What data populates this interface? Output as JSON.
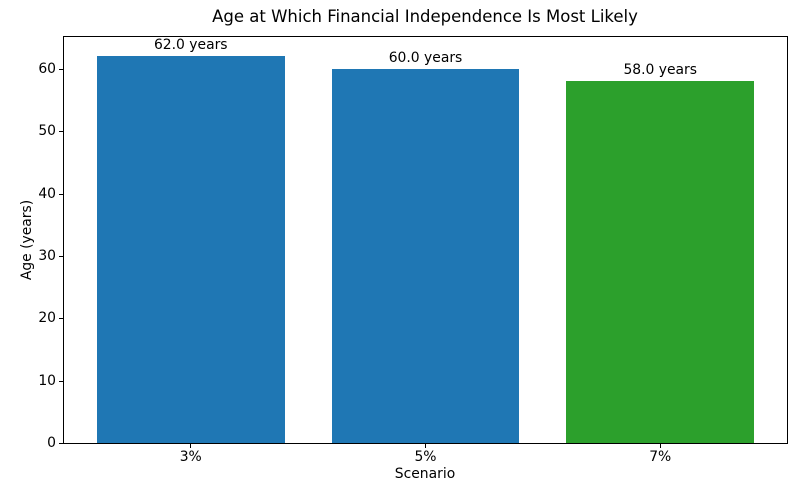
{
  "chart_data": {
    "type": "bar",
    "title": "Age at Which Financial Independence Is Most Likely",
    "xlabel": "Scenario",
    "ylabel": "Age (years)",
    "categories": [
      "3%",
      "5%",
      "7%"
    ],
    "values": [
      62.0,
      60.0,
      58.0
    ],
    "bar_labels": [
      "62.0 years",
      "60.0 years",
      "58.0 years"
    ],
    "bar_colors": [
      "#1f77b4",
      "#1f77b4",
      "#2ca02c"
    ],
    "ylim": [
      0,
      65.1
    ],
    "yticks": [
      0,
      10,
      20,
      30,
      40,
      50,
      60
    ],
    "bar_width_fraction": 0.8,
    "grid": false,
    "legend": false,
    "background": "#ffffff",
    "text_color": "#000000",
    "spine_color": "#000000"
  }
}
